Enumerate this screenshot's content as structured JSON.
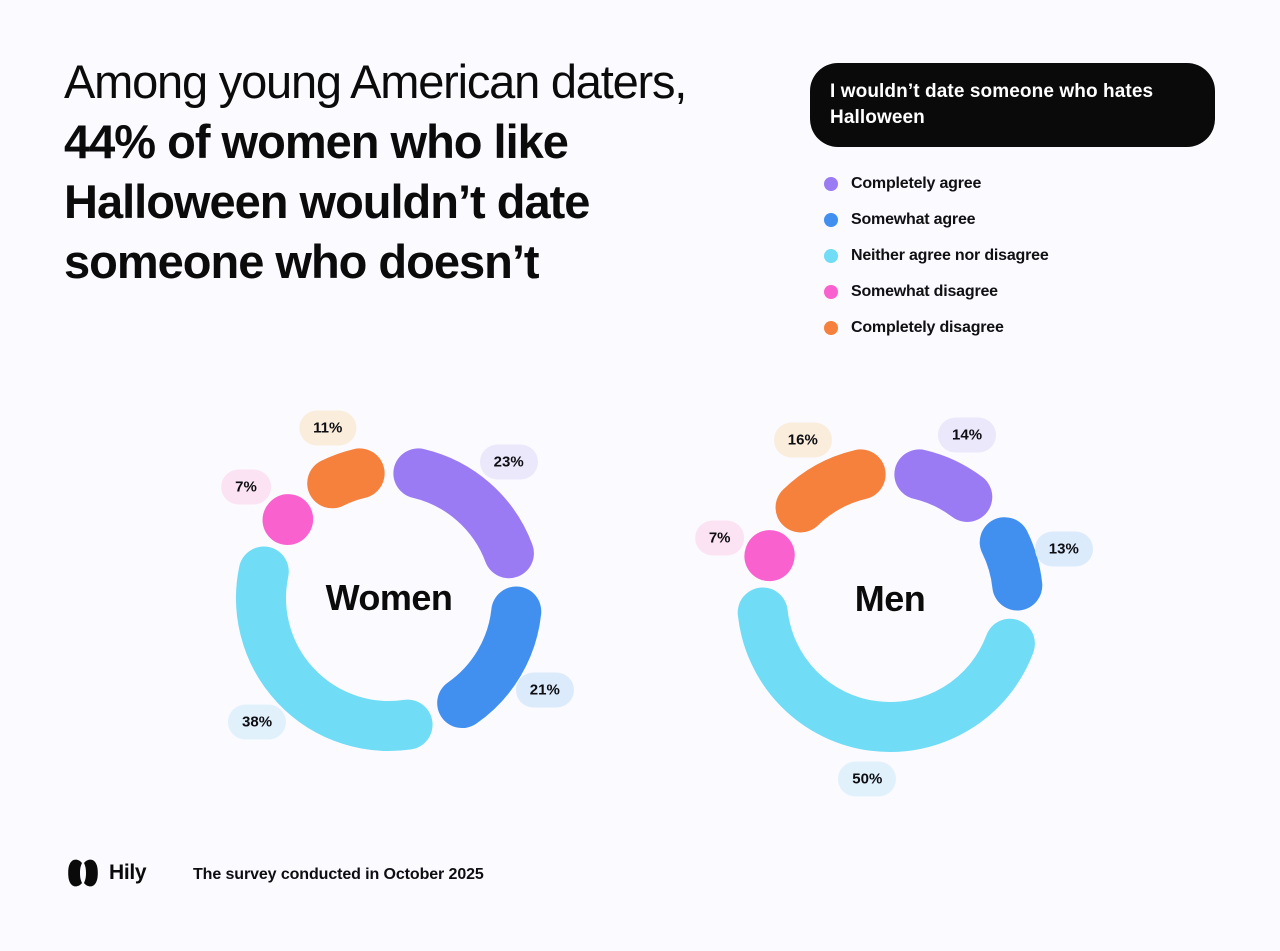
{
  "page": {
    "background": "#FAFAFF"
  },
  "title": {
    "line1": "Among young American daters,",
    "line2": "44% of women who like",
    "line3": "Halloween wouldn’t date",
    "line4": "someone who doesn’t"
  },
  "statement_pill": {
    "text": "I wouldn’t date someone who hates Halloween",
    "background": "#0A0A0A",
    "text_color": "#FFFFFF"
  },
  "legend": {
    "position": "top-right",
    "items": [
      {
        "label": "Completely agree",
        "color": "#9B7BF3"
      },
      {
        "label": "Somewhat agree",
        "color": "#4190F0"
      },
      {
        "label": "Neither agree nor disagree",
        "color": "#70DCF5"
      },
      {
        "label": "Somewhat disagree",
        "color": "#F961CE"
      },
      {
        "label": "Completely disagree",
        "color": "#F5813D"
      }
    ]
  },
  "chart_data": [
    {
      "type": "pie",
      "variant": "donut",
      "title": "Women",
      "categories": [
        "Completely agree",
        "Somewhat agree",
        "Neither agree nor disagree",
        "Somewhat disagree",
        "Completely disagree"
      ],
      "values": [
        23,
        21,
        38,
        7,
        11
      ],
      "unit": "%",
      "colors": [
        "#9B7BF3",
        "#4190F0",
        "#70DCF5",
        "#F961CE",
        "#F5813D"
      ],
      "badge_colors": [
        "#ECE8FB",
        "#DCEBFC",
        "#E1F1FC",
        "#FCE3F4",
        "#FAEDDC"
      ],
      "start_angle": "top",
      "direction": "clockwise",
      "labels": "outside-badges"
    },
    {
      "type": "pie",
      "variant": "donut",
      "title": "Men",
      "categories": [
        "Completely agree",
        "Somewhat agree",
        "Neither agree nor disagree",
        "Somewhat disagree",
        "Completely disagree"
      ],
      "values": [
        14,
        13,
        50,
        7,
        16
      ],
      "unit": "%",
      "colors": [
        "#9B7BF3",
        "#4190F0",
        "#70DCF5",
        "#F961CE",
        "#F5813D"
      ],
      "badge_colors": [
        "#ECE8FB",
        "#DCEBFC",
        "#E1F1FC",
        "#FCE3F4",
        "#FAEDDC"
      ],
      "start_angle": "top",
      "direction": "clockwise",
      "labels": "outside-badges"
    }
  ],
  "footer": {
    "brand": "Hily",
    "note": "The survey conducted in October 2025"
  }
}
